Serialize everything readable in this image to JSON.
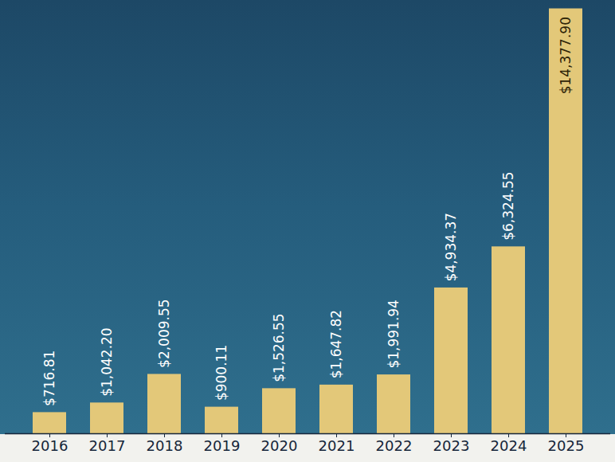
{
  "chart_data": {
    "type": "bar",
    "categories": [
      "2016",
      "2017",
      "2018",
      "2019",
      "2020",
      "2021",
      "2022",
      "2023",
      "2024",
      "2025"
    ],
    "values": [
      716.81,
      1042.2,
      2009.55,
      900.11,
      1526.55,
      1647.82,
      1991.94,
      4934.37,
      6324.55,
      14377.9
    ],
    "value_labels": [
      "$716.81",
      "$1,042.20",
      "$2,009.55",
      "$900.11",
      "$1,526.55",
      "$1,647.82",
      "$1,991.94",
      "$4,934.37",
      "$6,324.55",
      "$14,377.90"
    ],
    "color": "#e3c879",
    "ylim": [
      0,
      14500
    ],
    "data_labels": true,
    "tick_labels": "x"
  }
}
